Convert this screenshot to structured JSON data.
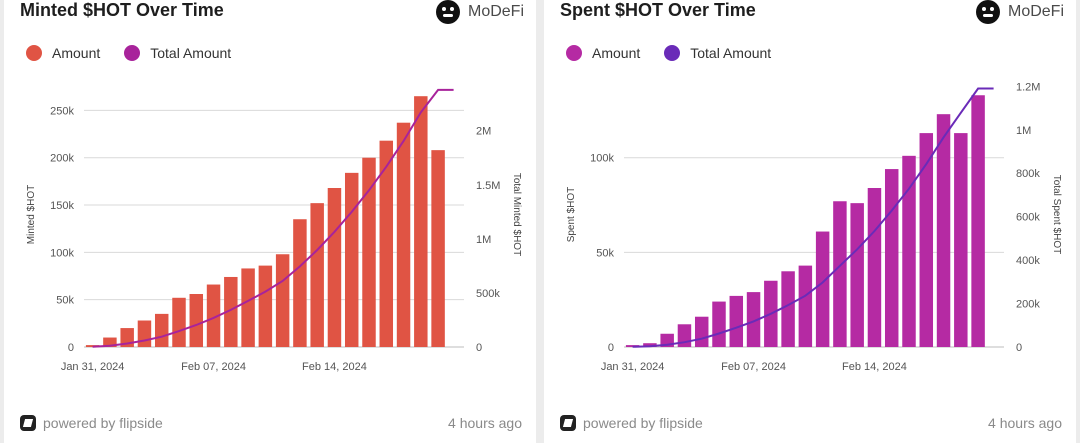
{
  "brand": {
    "name": "MoDeFi",
    "logo": "modefi-logo-icon"
  },
  "footer": {
    "powered": "powered by flipside",
    "updated": "4 hours ago",
    "logo": "flipside-logo-icon"
  },
  "chart_data": [
    {
      "type": "bar",
      "title": "Minted $HOT Over Time",
      "ylabel": "Minted $HOT",
      "y2label": "Total Minted $HOT",
      "ylim": [
        0,
        280000
      ],
      "y2lim": [
        0,
        2450000
      ],
      "yticks": [
        0,
        50000,
        100000,
        150000,
        200000,
        250000
      ],
      "yticklabels": [
        "0",
        "50k",
        "100k",
        "150k",
        "200k",
        "250k"
      ],
      "y2ticks": [
        0,
        500000,
        1000000,
        1500000,
        2000000
      ],
      "y2ticklabels": [
        "0",
        "500k",
        "1M",
        "1.5M",
        "2M"
      ],
      "grid": true,
      "legend_position": "top-left",
      "xticklabels": [
        "Jan 31, 2024",
        "Feb 07, 2024",
        "Feb 14, 2024"
      ],
      "xtick_index": [
        0,
        7,
        14
      ],
      "categories": [
        "2024-01-31",
        "2024-02-01",
        "2024-02-02",
        "2024-02-03",
        "2024-02-04",
        "2024-02-05",
        "2024-02-06",
        "2024-02-07",
        "2024-02-08",
        "2024-02-09",
        "2024-02-10",
        "2024-02-11",
        "2024-02-12",
        "2024-02-13",
        "2024-02-14",
        "2024-02-15",
        "2024-02-16",
        "2024-02-17",
        "2024-02-18",
        "2024-02-19",
        "2024-02-20",
        "2024-02-21"
      ],
      "series": [
        {
          "name": "Amount",
          "type": "bar",
          "axis": "left",
          "color": "#e05444",
          "values": [
            2000,
            10000,
            20000,
            28000,
            35000,
            52000,
            56000,
            66000,
            74000,
            83000,
            86000,
            98000,
            135000,
            152000,
            168000,
            184000,
            200000,
            218000,
            237000,
            265000,
            208000,
            0
          ]
        },
        {
          "name": "Total Amount",
          "type": "line",
          "axis": "right",
          "color": "#a8239b",
          "values": [
            2000,
            12000,
            32000,
            60000,
            95000,
            147000,
            203000,
            269000,
            343000,
            426000,
            512000,
            610000,
            745000,
            897000,
            1065000,
            1249000,
            1449000,
            1667000,
            1904000,
            2169000,
            2377000,
            2377000
          ]
        }
      ]
    },
    {
      "type": "bar",
      "title": "Spent $HOT Over Time",
      "ylabel": "Spent $HOT",
      "y2label": "Total Spent $HOT",
      "ylim": [
        0,
        140000
      ],
      "y2lim": [
        0,
        1220000
      ],
      "yticks": [
        0,
        50000,
        100000
      ],
      "yticklabels": [
        "0",
        "50k",
        "100k"
      ],
      "y2ticks": [
        0,
        200000,
        400000,
        600000,
        800000,
        1000000,
        1200000
      ],
      "y2ticklabels": [
        "0",
        "200k",
        "400k",
        "600k",
        "800k",
        "1M",
        "1.2M"
      ],
      "grid": true,
      "legend_position": "top-left",
      "xticklabels": [
        "Jan 31, 2024",
        "Feb 07, 2024",
        "Feb 14, 2024"
      ],
      "xtick_index": [
        0,
        7,
        14
      ],
      "categories": [
        "2024-01-31",
        "2024-02-01",
        "2024-02-02",
        "2024-02-03",
        "2024-02-04",
        "2024-02-05",
        "2024-02-06",
        "2024-02-07",
        "2024-02-08",
        "2024-02-09",
        "2024-02-10",
        "2024-02-11",
        "2024-02-12",
        "2024-02-13",
        "2024-02-14",
        "2024-02-15",
        "2024-02-16",
        "2024-02-17",
        "2024-02-18",
        "2024-02-19",
        "2024-02-20",
        "2024-02-21"
      ],
      "series": [
        {
          "name": "Amount",
          "type": "bar",
          "axis": "left",
          "color": "#b52aa3",
          "values": [
            1000,
            2000,
            7000,
            12000,
            16000,
            24000,
            27000,
            29000,
            35000,
            40000,
            43000,
            61000,
            77000,
            76000,
            84000,
            94000,
            101000,
            113000,
            123000,
            113000,
            133000,
            0
          ]
        },
        {
          "name": "Total Amount",
          "type": "line",
          "axis": "right",
          "color": "#6a2bb8",
          "values": [
            1000,
            3000,
            10000,
            22000,
            38000,
            62000,
            89000,
            118000,
            153000,
            193000,
            236000,
            297000,
            374000,
            450000,
            534000,
            628000,
            729000,
            842000,
            965000,
            1078000,
            1190000,
            1190000
          ]
        }
      ]
    }
  ]
}
